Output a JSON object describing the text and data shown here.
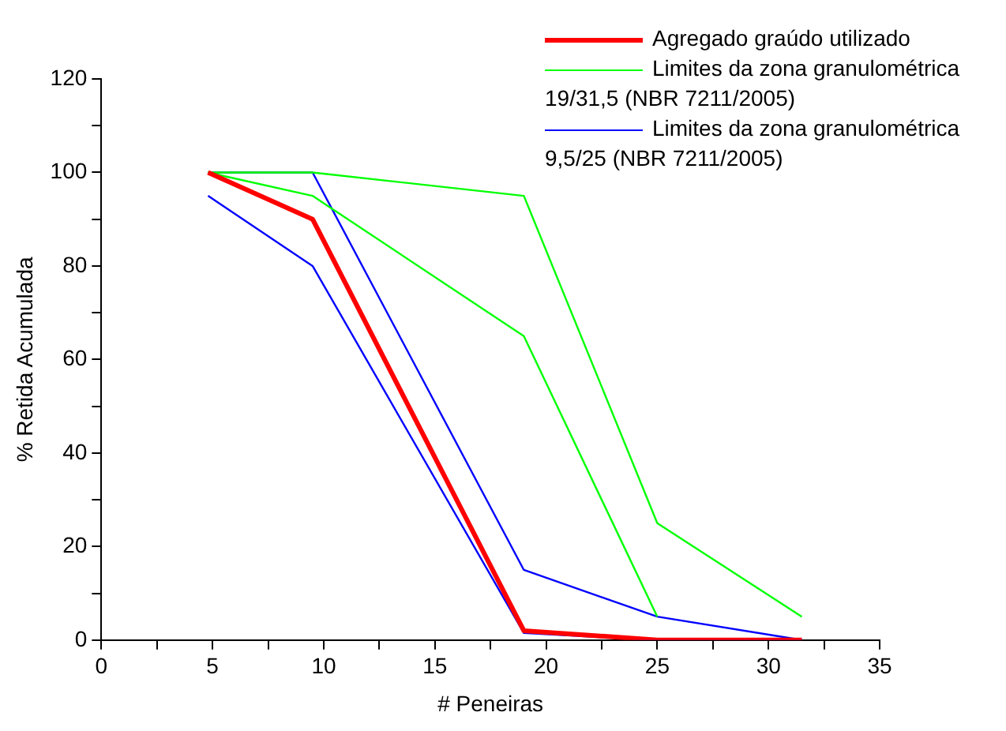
{
  "chart_data": {
    "type": "line",
    "xlabel": "# Peneiras",
    "ylabel": "% Retida Acumulada",
    "xlim": [
      0,
      35
    ],
    "xticks": [
      0,
      {
        "value": 2.5,
        "label": null
      },
      5,
      {
        "value": 7.5,
        "label": null
      },
      10,
      {
        "value": 12.5,
        "label": null
      },
      15,
      {
        "value": 17.5,
        "label": null
      },
      20,
      {
        "value": 22.5,
        "label": null
      },
      25,
      {
        "value": 27.5,
        "label": null
      },
      30,
      {
        "value": 32.5,
        "label": null
      },
      35
    ],
    "ylim": [
      0,
      120
    ],
    "yticks": [
      0,
      {
        "value": 10,
        "label": null
      },
      20,
      {
        "value": 30,
        "label": null
      },
      40,
      {
        "value": 50,
        "label": null
      },
      60,
      {
        "value": 70,
        "label": null
      },
      80,
      {
        "value": 90,
        "label": null
      },
      100,
      {
        "value": 110,
        "label": null
      },
      120
    ],
    "grid": false,
    "legend": "top right",
    "marker": "none",
    "line_style": "solid",
    "series": [
      {
        "name": "Agregado graúdo utilizado",
        "color": "#ff0000",
        "x": [
          4.8,
          9.5,
          19,
          25,
          31.5
        ],
        "values": [
          100,
          90,
          2,
          0,
          0
        ]
      },
      {
        "name": "Limites da zona granulométrica 19/31,5 (NBR 7211/2005)",
        "color": "#00ff00",
        "x": [
          4.8,
          9.5,
          19,
          25,
          31.5
        ],
        "values": [
          100,
          100,
          95,
          25,
          5
        ]
      },
      {
        "color": "#00ff00",
        "x": [
          4.8,
          9.5,
          19,
          25
        ],
        "values": [
          100,
          95,
          65,
          5
        ]
      },
      {
        "name": "Limites da zona granulométrica 9,5/25 (NBR 7211/2005)",
        "color": "#0000ff",
        "x": [
          4.8,
          9.5,
          19,
          25,
          31.5
        ],
        "values": [
          100,
          100,
          15,
          5,
          0
        ]
      },
      {
        "color": "#0000ff",
        "x": [
          4.8,
          9.5,
          19,
          25,
          31.5
        ],
        "values": [
          95,
          80,
          1.5,
          0,
          0
        ]
      }
    ]
  }
}
